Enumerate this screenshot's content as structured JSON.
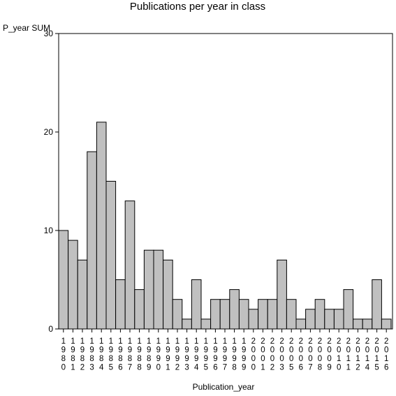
{
  "chart_data": {
    "type": "bar",
    "title": "Publications per year in class",
    "xlabel": "Publication_year",
    "ylabel": "P_year SUM",
    "ylim": [
      0,
      30
    ],
    "yticks": [
      "0",
      "10",
      "20",
      "30"
    ],
    "categories": [
      "1980",
      "1981",
      "1982",
      "1983",
      "1984",
      "1985",
      "1986",
      "1987",
      "1988",
      "1989",
      "1990",
      "1991",
      "1992",
      "1993",
      "1994",
      "1995",
      "1996",
      "1997",
      "1998",
      "1999",
      "2000",
      "2001",
      "2002",
      "2003",
      "2005",
      "2006",
      "2007",
      "2008",
      "2009",
      "2010",
      "2011",
      "2012",
      "2014",
      "2015",
      "2016"
    ],
    "values": [
      10,
      9,
      7,
      18,
      21,
      15,
      5,
      13,
      4,
      8,
      8,
      7,
      3,
      1,
      5,
      1,
      3,
      3,
      4,
      3,
      2,
      3,
      3,
      7,
      3,
      1,
      2,
      3,
      2,
      2,
      4,
      1,
      1,
      5,
      1
    ],
    "bar_color": "#c0c0c0",
    "grid": false,
    "legend": "none"
  }
}
